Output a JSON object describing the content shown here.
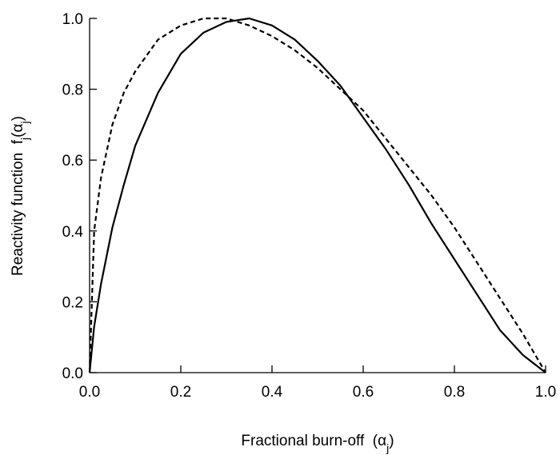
{
  "chart_data": {
    "type": "line",
    "xlabel": [
      {
        "text": "Fractional burn-off  (α"
      },
      {
        "text": "j",
        "sub": true
      },
      {
        "text": ")"
      }
    ],
    "ylabel": [
      {
        "text": "Reactivity function  f"
      },
      {
        "text": "j",
        "sub": true
      },
      {
        "text": "(α"
      },
      {
        "text": "j",
        "sub": true
      },
      {
        "text": ")"
      }
    ],
    "x": [
      0,
      0.01,
      0.025,
      0.05,
      0.075,
      0.1,
      0.15,
      0.2,
      0.25,
      0.3,
      0.35,
      0.4,
      0.45,
      0.5,
      0.55,
      0.6,
      0.65,
      0.7,
      0.75,
      0.8,
      0.85,
      0.9,
      0.95,
      1.0
    ],
    "series": [
      {
        "color": "#000000",
        "dash": "solid",
        "values": [
          0,
          0.13,
          0.25,
          0.41,
          0.53,
          0.64,
          0.79,
          0.9,
          0.96,
          0.99,
          1.0,
          0.98,
          0.94,
          0.88,
          0.81,
          0.72,
          0.63,
          0.53,
          0.42,
          0.32,
          0.22,
          0.12,
          0.05,
          0
        ]
      },
      {
        "color": "#000000",
        "dash": "dashed",
        "values": [
          0,
          0.4,
          0.55,
          0.7,
          0.79,
          0.85,
          0.94,
          0.98,
          1.0,
          1.0,
          0.98,
          0.95,
          0.91,
          0.86,
          0.8,
          0.74,
          0.66,
          0.58,
          0.5,
          0.41,
          0.31,
          0.21,
          0.11,
          0
        ]
      }
    ],
    "xlim": [
      0,
      1.0
    ],
    "ylim": [
      0,
      1.0
    ],
    "xticks": [
      {
        "value": 0,
        "label": "0.0"
      },
      0.2,
      0.4,
      0.6,
      0.8,
      {
        "value": 1.0,
        "label": "1.0"
      }
    ],
    "yticks": [
      {
        "value": 0,
        "label": "0.0"
      },
      0.2,
      0.4,
      0.6,
      0.8,
      {
        "value": 1.0,
        "label": "1.0"
      }
    ],
    "grid": false
  }
}
